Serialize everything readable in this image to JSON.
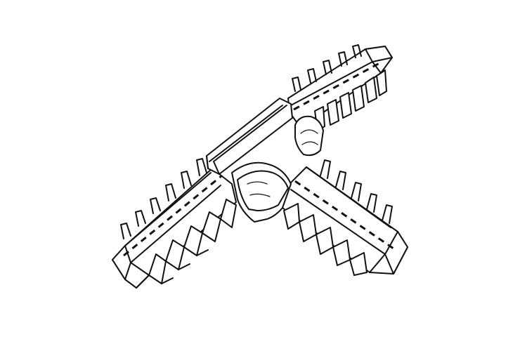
{
  "figure": {
    "subject": "tee-connector-line-drawing",
    "colors": {
      "background": "#ffffff",
      "line": "#111111"
    }
  }
}
